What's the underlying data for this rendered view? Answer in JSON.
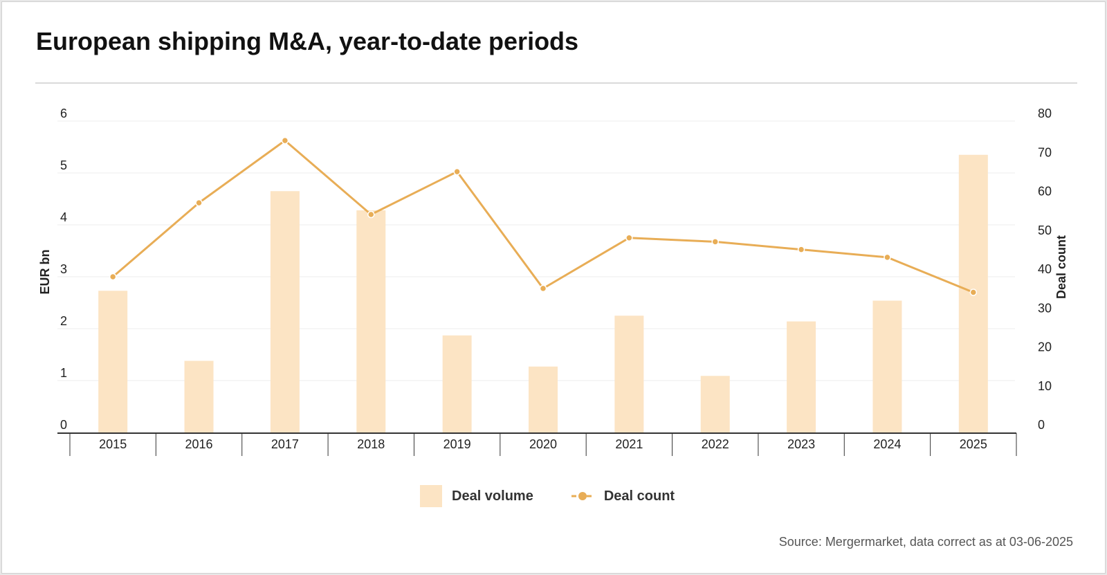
{
  "title": "European shipping M&A, year-to-date periods",
  "source": "Source: Mergermarket, data correct as at 03-06-2025",
  "colors": {
    "bar": "#fce4c4",
    "line": "#e8ad56",
    "grid": "#ececec",
    "axis": "#333333"
  },
  "chart_data": {
    "type": "bar",
    "categories": [
      "2015",
      "2016",
      "2017",
      "2018",
      "2019",
      "2020",
      "2021",
      "2022",
      "2023",
      "2024",
      "2025"
    ],
    "series": [
      {
        "name": "Deal volume",
        "type": "bar",
        "axis": "left",
        "values": [
          2.73,
          1.38,
          4.65,
          4.28,
          1.87,
          1.27,
          2.25,
          1.09,
          2.14,
          2.54,
          5.35
        ]
      },
      {
        "name": "Deal count",
        "type": "line",
        "axis": "right",
        "values": [
          40,
          59,
          75,
          56,
          67,
          37,
          50,
          49,
          47,
          45,
          36
        ]
      }
    ],
    "ylabel": "EUR bn",
    "y2label": "Deal count",
    "ylim": [
      0,
      6
    ],
    "y2lim": [
      0,
      80
    ],
    "yticks": [
      "0",
      "1",
      "2",
      "3",
      "4",
      "5",
      "6"
    ],
    "y2ticks": [
      "0",
      "10",
      "20",
      "30",
      "40",
      "50",
      "60",
      "70",
      "80"
    ],
    "grid": true,
    "legend_position": "bottom-center"
  }
}
